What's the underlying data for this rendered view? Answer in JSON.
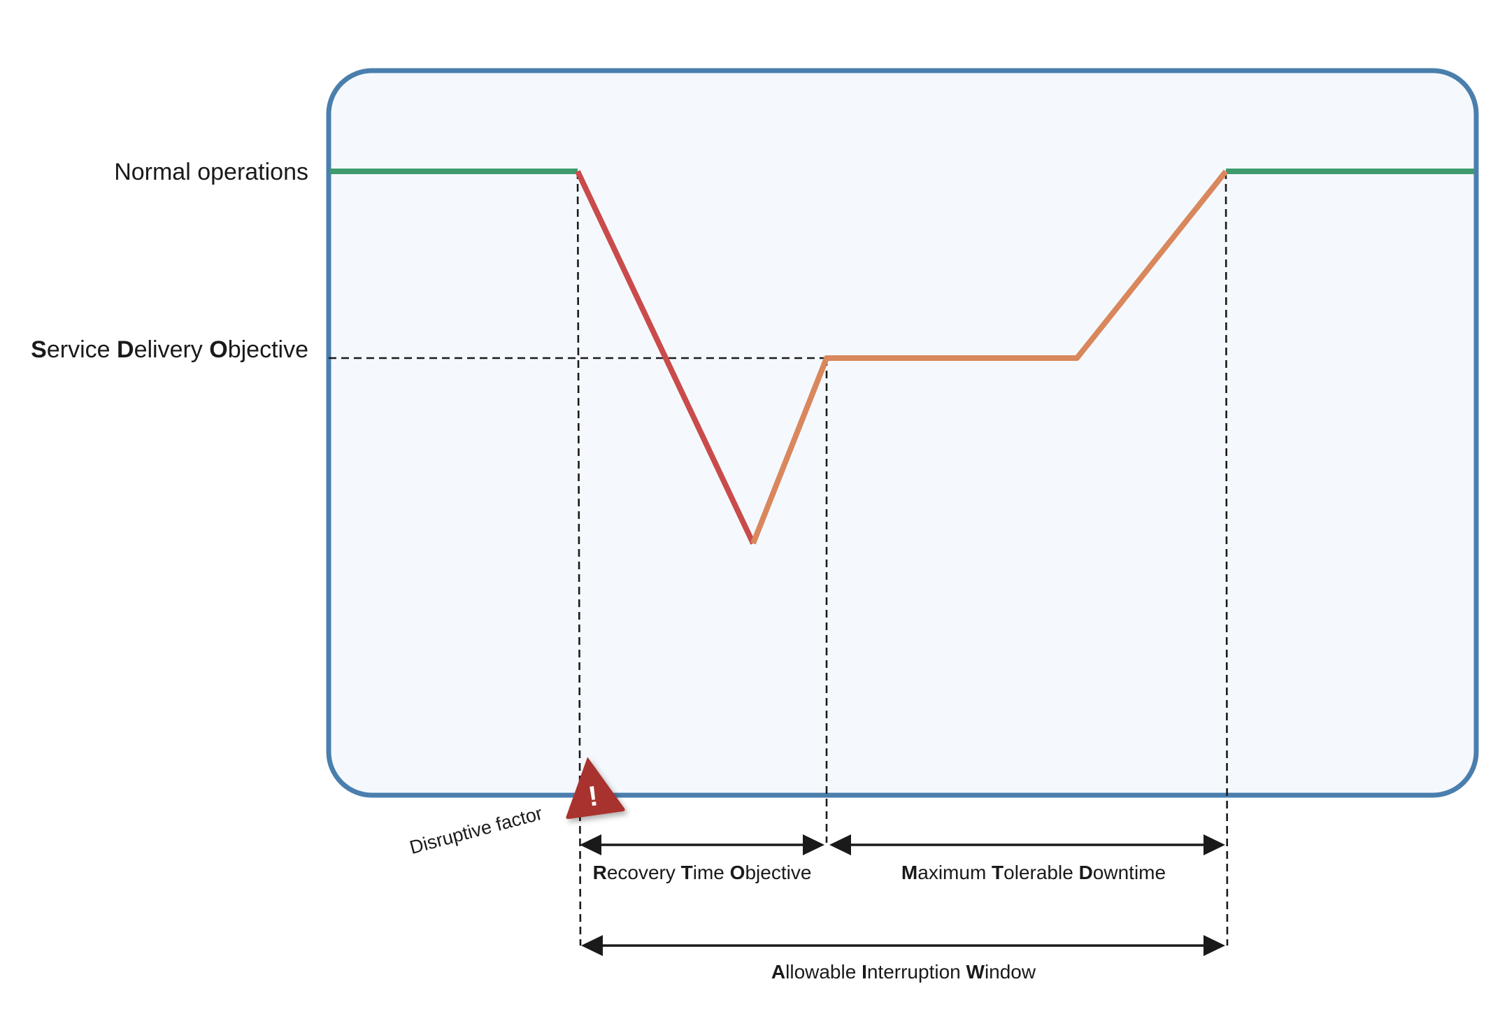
{
  "labels": {
    "normal_operations": "Normal operations",
    "sdo": [
      {
        "t": "S",
        "b": true
      },
      {
        "t": "ervice ",
        "b": false
      },
      {
        "t": "D",
        "b": true
      },
      {
        "t": "elivery ",
        "b": false
      },
      {
        "t": "O",
        "b": true
      },
      {
        "t": "bjective",
        "b": false
      }
    ],
    "rto": [
      {
        "t": "R",
        "b": true
      },
      {
        "t": "ecovery ",
        "b": false
      },
      {
        "t": "T",
        "b": true
      },
      {
        "t": "ime ",
        "b": false
      },
      {
        "t": "O",
        "b": true
      },
      {
        "t": "bjective",
        "b": false
      }
    ],
    "mtd": [
      {
        "t": "M",
        "b": true
      },
      {
        "t": "aximum ",
        "b": false
      },
      {
        "t": "T",
        "b": true
      },
      {
        "t": "olerable ",
        "b": false
      },
      {
        "t": "D",
        "b": true
      },
      {
        "t": "owntime",
        "b": false
      }
    ],
    "aiw": [
      {
        "t": "A",
        "b": true
      },
      {
        "t": "llowable ",
        "b": false
      },
      {
        "t": "I",
        "b": true
      },
      {
        "t": "nterruption ",
        "b": false
      },
      {
        "t": "W",
        "b": true
      },
      {
        "t": "indow",
        "b": false
      }
    ],
    "disruptive_factor": "Disruptive factor",
    "warning_mark": "!"
  },
  "colors": {
    "frame_stroke": "#4a7fad",
    "frame_fill": "#f5f9fd",
    "normal_line": "#3f9a6e",
    "disruption_line": "#c94b4b",
    "recovery_line": "#d9875c",
    "warning_fill": "#a8302d",
    "dimension_line": "#1a1a1a"
  },
  "icons": {
    "warning": "warning-triangle-icon"
  }
}
